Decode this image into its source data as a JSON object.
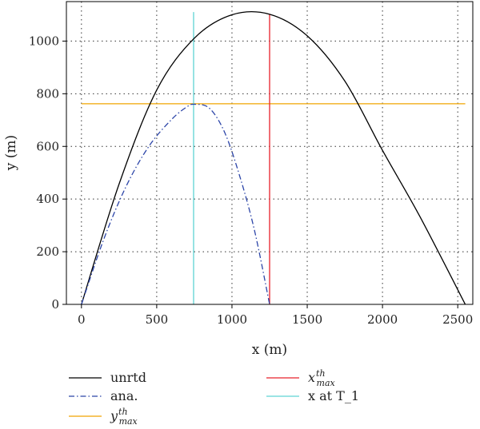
{
  "chart_data": {
    "type": "line",
    "xlabel": "x (m)",
    "ylabel": "y (m)",
    "xlim": [
      -100,
      2600
    ],
    "ylim": [
      0,
      1150
    ],
    "x_ticks": [
      0,
      500,
      1000,
      1500,
      2000,
      2500
    ],
    "y_ticks": [
      0,
      200,
      400,
      600,
      800,
      1000
    ],
    "grid": true,
    "legend_position": "bottom",
    "colors": {
      "unrtd": "#000000",
      "ana": "#2b44a8",
      "ymax": "#f0a500",
      "xmax": "#e8202a",
      "xT1": "#5fd3d3"
    },
    "series": [
      {
        "name": "unrtd",
        "style": "solid",
        "x": [
          0,
          250,
          500,
          750,
          1000,
          1250,
          1500,
          1750,
          2000,
          2250,
          2550
        ],
        "y": [
          0,
          457,
          814,
          1011,
          1100,
          1102,
          1020,
          848,
          585,
          332,
          0
        ]
      },
      {
        "name": "ana.",
        "style": "dashdot",
        "x": [
          0,
          150,
          300,
          450,
          600,
          700,
          750,
          850,
          950,
          1050,
          1150,
          1250
        ],
        "y": [
          0,
          250,
          452,
          602,
          703,
          750,
          760,
          745,
          655,
          490,
          280,
          0
        ]
      }
    ],
    "reference_lines": [
      {
        "name": "y_max^th",
        "orientation": "horizontal",
        "y": 762,
        "x_range": [
          0,
          2550
        ]
      },
      {
        "name": "x_max^th",
        "orientation": "vertical",
        "x": 1250,
        "y_range": [
          0,
          1102
        ]
      },
      {
        "name": "x at T_1",
        "orientation": "vertical",
        "x": 745,
        "y_range": [
          0,
          1110
        ]
      }
    ],
    "legend": [
      {
        "label": "unrtd",
        "style": "solid",
        "color_key": "unrtd"
      },
      {
        "label": "ana.",
        "style": "dashdot",
        "color_key": "ana"
      },
      {
        "label": "y",
        "sup": "th",
        "sub": "max",
        "style": "solid",
        "color_key": "ymax"
      },
      {
        "label": "x",
        "sup": "th",
        "sub": "max",
        "style": "solid",
        "color_key": "xmax"
      },
      {
        "label": "x at T_1",
        "style": "solid",
        "color_key": "xT1"
      }
    ]
  }
}
